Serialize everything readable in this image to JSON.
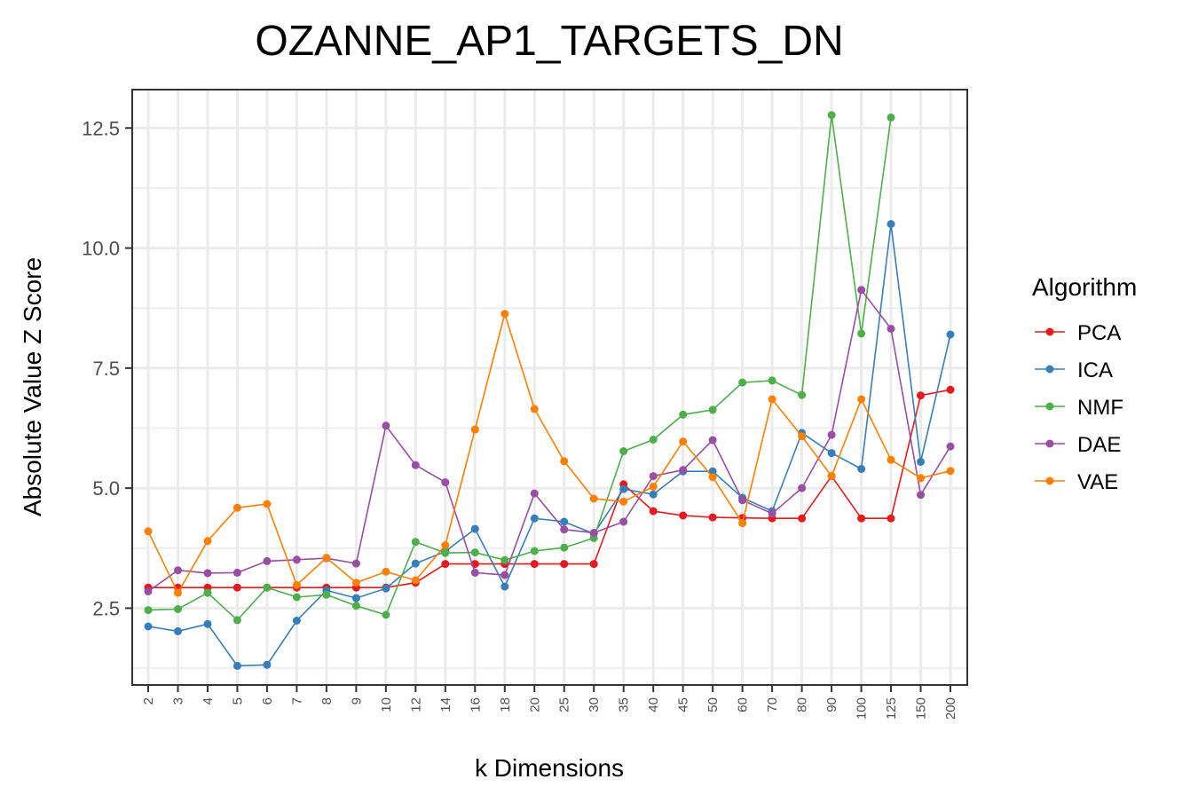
{
  "chart_data": {
    "type": "line",
    "title": "OZANNE_AP1_TARGETS_DN",
    "xlabel": "k Dimensions",
    "ylabel": "Absolute Value Z Score",
    "categories": [
      "2",
      "3",
      "4",
      "5",
      "6",
      "7",
      "8",
      "9",
      "10",
      "12",
      "14",
      "16",
      "18",
      "20",
      "25",
      "30",
      "35",
      "40",
      "45",
      "50",
      "60",
      "70",
      "80",
      "90",
      "100",
      "125",
      "150",
      "200"
    ],
    "yticks": [
      "2.5",
      "5.0",
      "7.5",
      "10.0",
      "12.5"
    ],
    "ylim": [
      0.9,
      13.3
    ],
    "grid": true,
    "legend": {
      "title": "Algorithm",
      "position": "right"
    },
    "series": [
      {
        "name": "PCA",
        "color": "#E41A1C",
        "values": [
          2.93,
          2.93,
          2.93,
          2.93,
          2.93,
          2.93,
          2.93,
          2.93,
          2.93,
          3.03,
          3.42,
          3.42,
          3.42,
          3.42,
          3.42,
          3.42,
          5.08,
          4.52,
          4.43,
          4.39,
          4.38,
          4.37,
          4.37,
          5.25,
          4.37,
          4.37,
          6.93,
          7.05
        ]
      },
      {
        "name": "ICA",
        "color": "#377EB8",
        "values": [
          2.12,
          2.02,
          2.17,
          1.3,
          1.32,
          2.24,
          2.87,
          2.71,
          2.91,
          3.43,
          3.68,
          4.15,
          2.95,
          4.37,
          4.3,
          4.05,
          4.98,
          4.87,
          5.35,
          5.35,
          4.8,
          4.52,
          6.15,
          5.73,
          5.4,
          10.5,
          5.55,
          8.2
        ]
      },
      {
        "name": "NMF",
        "color": "#4DAF4A",
        "values": [
          2.46,
          2.48,
          2.82,
          2.25,
          2.93,
          2.73,
          2.78,
          2.55,
          2.36,
          3.88,
          3.65,
          3.66,
          3.5,
          3.69,
          3.76,
          3.96,
          5.77,
          6.01,
          6.53,
          6.63,
          7.2,
          7.24,
          6.94,
          12.77,
          8.22,
          12.72,
          null,
          null
        ]
      },
      {
        "name": "DAE",
        "color": "#984EA3",
        "values": [
          2.85,
          3.29,
          3.23,
          3.24,
          3.48,
          3.51,
          3.54,
          3.43,
          6.3,
          5.48,
          5.12,
          3.24,
          3.19,
          4.89,
          4.14,
          4.07,
          4.3,
          5.25,
          5.38,
          6.0,
          4.75,
          4.47,
          5.0,
          6.11,
          9.13,
          8.32,
          4.86,
          5.87
        ]
      },
      {
        "name": "VAE",
        "color": "#FF7F00",
        "values": [
          4.1,
          2.82,
          3.9,
          4.59,
          4.67,
          2.98,
          3.55,
          3.03,
          3.26,
          3.08,
          3.81,
          6.22,
          8.63,
          6.65,
          5.56,
          4.78,
          4.72,
          5.03,
          5.97,
          5.23,
          4.27,
          6.85,
          6.08,
          5.25,
          6.85,
          5.59,
          5.21,
          5.36
        ]
      }
    ]
  }
}
